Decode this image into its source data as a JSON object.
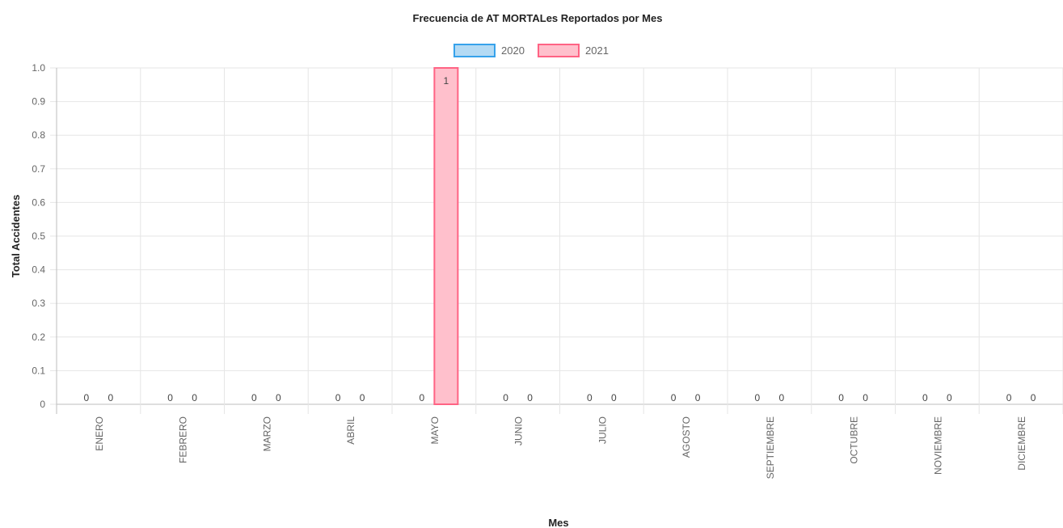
{
  "chart_data": {
    "type": "bar",
    "title": "Frecuencia de AT MORTALes Reportados por Mes",
    "xlabel": "Mes",
    "ylabel": "Total Accidentes",
    "categories": [
      "ENERO",
      "FEBRERO",
      "MARZO",
      "ABRIL",
      "MAYO",
      "JUNIO",
      "JULIO",
      "AGOSTO",
      "SEPTIEMBRE",
      "OCTUBRE",
      "NOVIEMBRE",
      "DICIEMBRE"
    ],
    "series": [
      {
        "name": "2020",
        "values": [
          0,
          0,
          0,
          0,
          0,
          0,
          0,
          0,
          0,
          0,
          0,
          0
        ],
        "fill": "#b3daf4",
        "stroke": "#36a2eb"
      },
      {
        "name": "2021",
        "values": [
          0,
          0,
          0,
          0,
          1,
          0,
          0,
          0,
          0,
          0,
          0,
          0
        ],
        "fill": "#ffc0cc",
        "stroke": "#ff6384"
      }
    ],
    "ylim": [
      0,
      1
    ],
    "yticks": [
      "0",
      "0.1",
      "0.2",
      "0.3",
      "0.4",
      "0.5",
      "0.6",
      "0.7",
      "0.8",
      "0.9",
      "1.0"
    ],
    "grid": true,
    "legend_position": "top",
    "data_labels": true,
    "colors": {
      "grid": "#e6e6e6",
      "axis": "#bdbdbd",
      "tick_text": "#666666",
      "title_text": "#222222",
      "data_label": "#444444"
    }
  }
}
